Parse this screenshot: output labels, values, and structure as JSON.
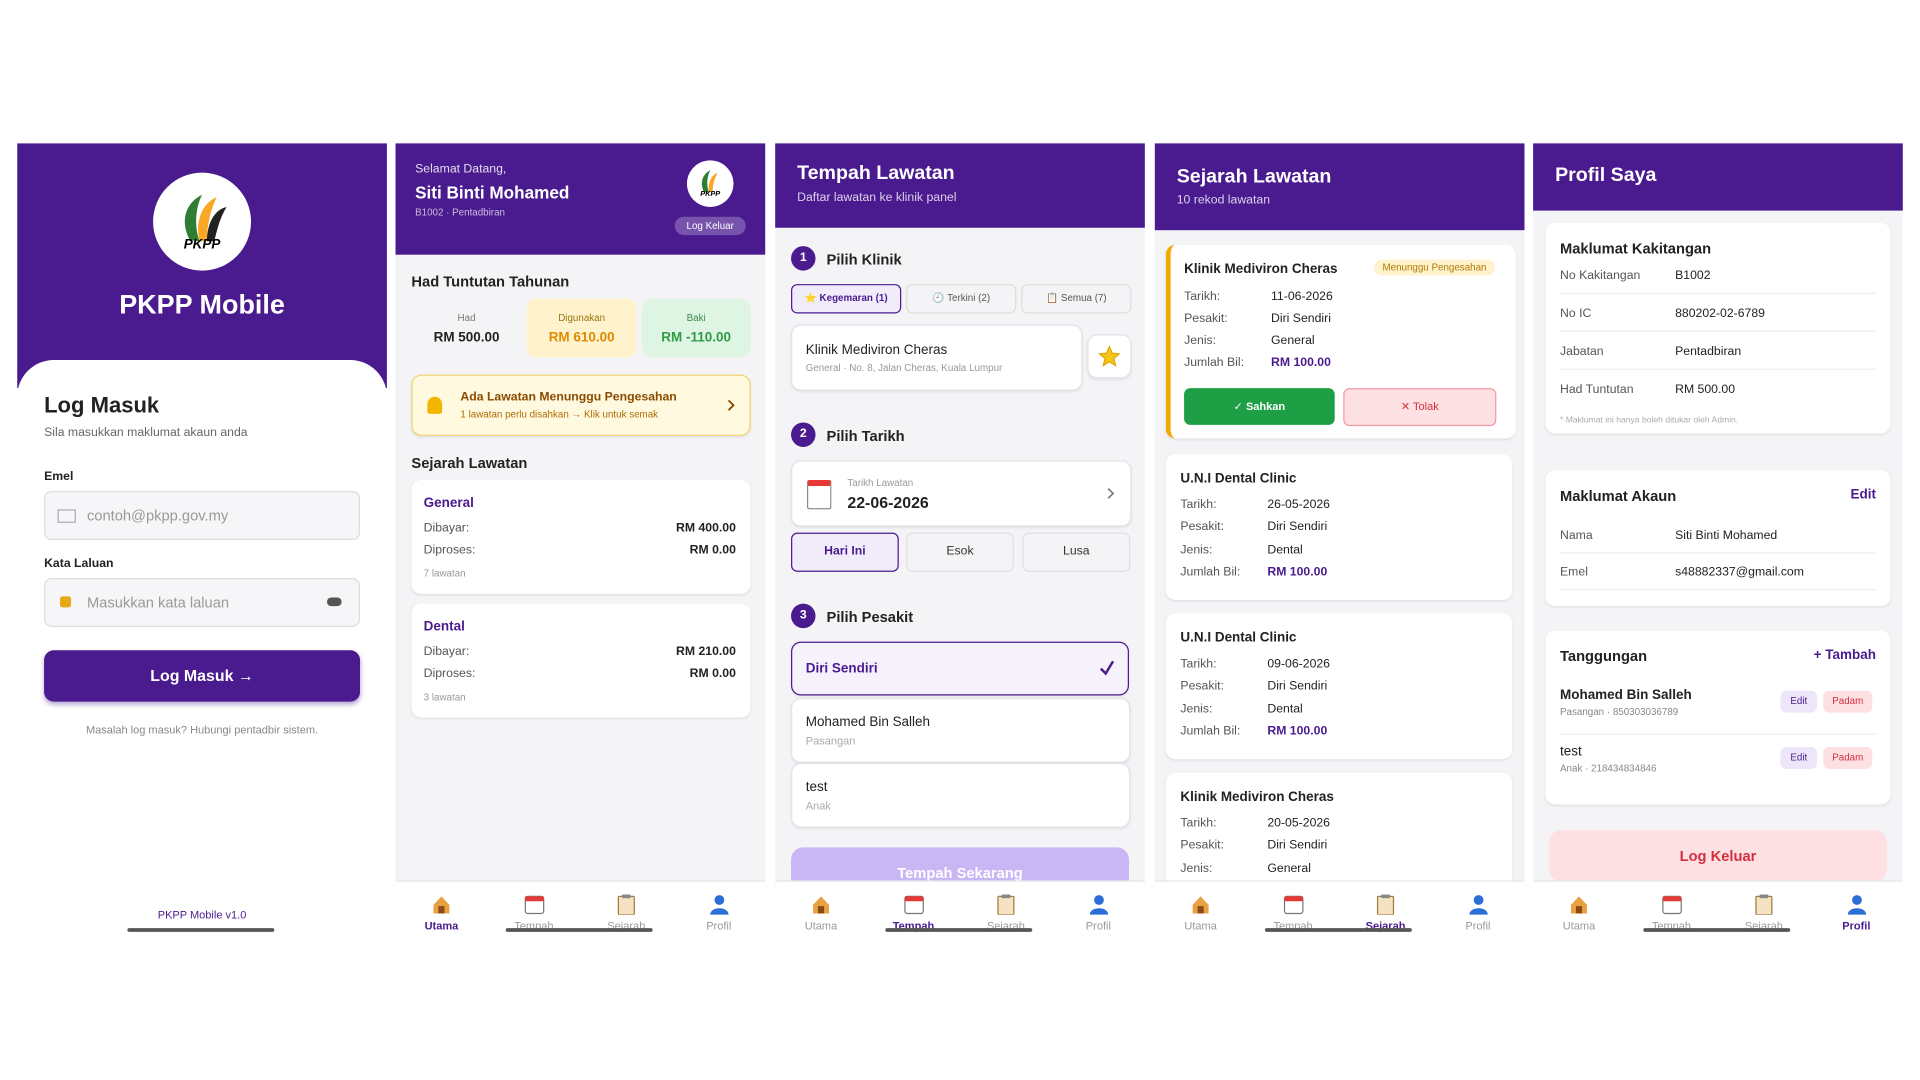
{
  "nav": [
    "Utama",
    "Tempah",
    "Sejarah",
    "Profil"
  ],
  "login": {
    "app_name": "PKPP Mobile",
    "logo_text": "PKPP",
    "title": "Log Masuk",
    "subtitle": "Sila masukkan maklumat akaun anda",
    "email_label": "Emel",
    "email_placeholder": "contoh@pkpp.gov.my",
    "password_label": "Kata Laluan",
    "password_placeholder": "Masukkan kata laluan",
    "button": "Log Masuk →",
    "help": "Masalah log masuk? Hubungi pentadbir sistem.",
    "version": "PKPP Mobile v1.0"
  },
  "home": {
    "greeting": "Selamat Datang,",
    "name": "Siti Binti Mohamed",
    "meta": "B1002 · Pentadbiran",
    "logo_text": "PKPP",
    "logout": "Log Keluar",
    "limit_title": "Had Tuntutan Tahunan",
    "limits": [
      {
        "label": "Had",
        "value": "RM 500.00"
      },
      {
        "label": "Digunakan",
        "value": "RM 610.00"
      },
      {
        "label": "Baki",
        "value": "RM -110.00"
      }
    ],
    "alert_title": "Ada Lawatan Menunggu Pengesahan",
    "alert_text": "1 lawatan perlu disahkan → Klik untuk semak",
    "history_title": "Sejarah Lawatan",
    "history": [
      {
        "type": "General",
        "rows": [
          [
            "Dibayar:",
            "RM 400.00"
          ],
          [
            "Diproses:",
            "RM 0.00"
          ]
        ],
        "count": "7 lawatan"
      },
      {
        "type": "Dental",
        "rows": [
          [
            "Dibayar:",
            "RM 210.00"
          ],
          [
            "Diproses:",
            "RM 0.00"
          ]
        ],
        "count": "3 lawatan"
      }
    ]
  },
  "booking": {
    "title": "Tempah Lawatan",
    "subtitle": "Daftar lawatan ke klinik panel",
    "steps": [
      {
        "number": "1",
        "title": "Pilih Klinik"
      },
      {
        "number": "2",
        "title": "Pilih Tarikh"
      },
      {
        "number": "3",
        "title": "Pilih Pesakit"
      }
    ],
    "tabs": [
      "⭐ Kegemaran (1)",
      "🕘 Terkini (2)",
      "📋 Semua (7)"
    ],
    "clinic": {
      "name": "Klinik Mediviron Cheras",
      "detail": "General · No. 8, Jalan Cheras, Kuala Lumpur"
    },
    "date_label": "Tarikh Lawatan",
    "date": "22-06-2026",
    "days": [
      "Hari Ini",
      "Esok",
      "Lusa"
    ],
    "patients": [
      {
        "name": "Diri Sendiri"
      },
      {
        "name": "Mohamed Bin Salleh",
        "relation": "Pasangan"
      },
      {
        "name": "test",
        "relation": "Anak"
      }
    ],
    "button": "Tempah Sekarang"
  },
  "history": {
    "title": "Sejarah Lawatan",
    "subtitle": "10 rekod lawatan",
    "labels": [
      "Tarikh:",
      "Pesakit:",
      "Jenis:",
      "Jumlah Bil:"
    ],
    "records": [
      {
        "clinic": "Klinik Mediviron Cheras",
        "status": "Menunggu Pengesahan",
        "date": "11-06-2026",
        "patient": "Diri Sendiri",
        "type": "General",
        "amount": "RM 100.00",
        "confirm": "✓ Sahkan",
        "reject": "✕ Tolak"
      },
      {
        "clinic": "U.N.I Dental Clinic",
        "date": "26-05-2026",
        "patient": "Diri Sendiri",
        "type": "Dental",
        "amount": "RM 100.00"
      },
      {
        "clinic": "U.N.I Dental Clinic",
        "date": "09-06-2026",
        "patient": "Diri Sendiri",
        "type": "Dental",
        "amount": "RM 100.00"
      },
      {
        "clinic": "Klinik Mediviron Cheras",
        "date": "20-05-2026",
        "patient": "Diri Sendiri",
        "type": "General"
      }
    ]
  },
  "profile": {
    "title": "Profil Saya",
    "staff_title": "Maklumat Kakitangan",
    "staff": [
      [
        "No Kakitangan",
        "B1002"
      ],
      [
        "No IC",
        "880202-02-6789"
      ],
      [
        "Jabatan",
        "Pentadbiran"
      ],
      [
        "Had Tuntutan",
        "RM 500.00"
      ]
    ],
    "staff_note": "* Maklumat ini hanya boleh ditukar oleh Admin.",
    "account_title": "Maklumat Akaun",
    "account_edit": "Edit",
    "account": [
      [
        "Nama",
        "Siti Binti Mohamed"
      ],
      [
        "Emel",
        "s48882337@gmail.com"
      ]
    ],
    "dependents_title": "Tanggungan",
    "dependents_add": "+ Tambah",
    "dependents": [
      {
        "name": "Mohamed Bin Salleh",
        "detail": "Pasangan · 850303036789"
      },
      {
        "name": "test",
        "detail": "Anak · 218434834846"
      }
    ],
    "edit": "Edit",
    "delete": "Padam",
    "logout": "Log Keluar"
  }
}
